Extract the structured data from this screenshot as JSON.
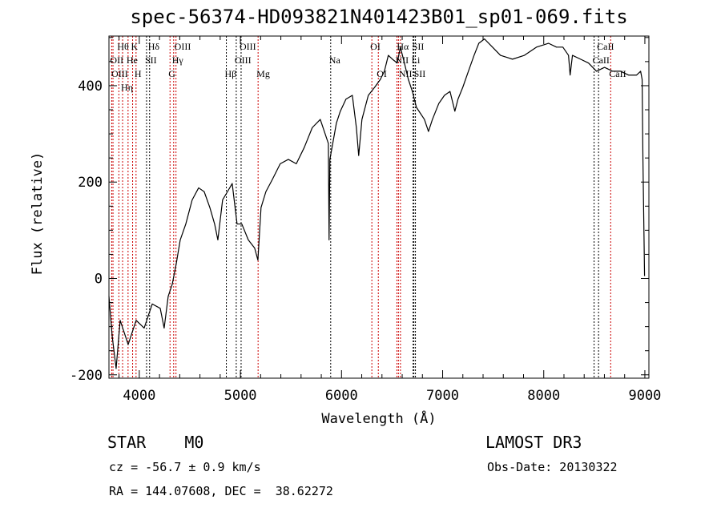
{
  "chart_data": {
    "type": "line",
    "title": "spec-56374-HD093821N401423B01_sp01-069.fits",
    "xlabel": "Wavelength (Å)",
    "ylabel": "Flux (relative)",
    "xlim": [
      3700,
      9040
    ],
    "ylim": [
      -207,
      503
    ],
    "xticks": [
      4000,
      5000,
      6000,
      7000,
      8000,
      9000
    ],
    "yticks": [
      -200,
      0,
      200,
      400
    ],
    "grid": false,
    "series": [
      {
        "name": "spectrum",
        "x": [
          3700,
          3732,
          3771,
          3811,
          3890,
          3969,
          4048,
          4128,
          4207,
          4246,
          4286,
          4326,
          4365,
          4405,
          4460,
          4523,
          4587,
          4642,
          4698,
          4745,
          4777,
          4824,
          4872,
          4919,
          4967,
          5014,
          5078,
          5141,
          5173,
          5204,
          5252,
          5315,
          5394,
          5474,
          5553,
          5632,
          5711,
          5790,
          5830,
          5870,
          5877,
          5885,
          5949,
          5988,
          6044,
          6107,
          6147,
          6170,
          6202,
          6265,
          6329,
          6384,
          6424,
          6463,
          6503,
          6551,
          6582,
          6622,
          6661,
          6701,
          6741,
          6820,
          6860,
          6899,
          6962,
          7018,
          7073,
          7121,
          7152,
          7200,
          7255,
          7311,
          7358,
          7414,
          7493,
          7572,
          7691,
          7809,
          7928,
          8047,
          8126,
          8189,
          8245,
          8261,
          8284,
          8364,
          8443,
          8522,
          8601,
          8681,
          8760,
          8839,
          8918,
          8958,
          8973,
          8981,
          8997
        ],
        "y": [
          -37,
          -120,
          -187,
          -87,
          -137,
          -87,
          -103,
          -53,
          -62,
          -103,
          -37,
          -12,
          30,
          80,
          113,
          163,
          188,
          180,
          147,
          113,
          80,
          163,
          180,
          197,
          113,
          113,
          80,
          63,
          38,
          147,
          180,
          205,
          238,
          247,
          238,
          272,
          313,
          330,
          305,
          280,
          80,
          247,
          322,
          347,
          372,
          380,
          313,
          255,
          330,
          380,
          397,
          413,
          430,
          463,
          455,
          447,
          480,
          447,
          413,
          388,
          355,
          330,
          305,
          330,
          363,
          380,
          388,
          347,
          372,
          397,
          430,
          463,
          488,
          497,
          480,
          463,
          455,
          463,
          480,
          488,
          480,
          480,
          463,
          422,
          463,
          455,
          447,
          430,
          438,
          430,
          430,
          422,
          422,
          430,
          413,
          247,
          5
        ]
      }
    ],
    "lines": [
      {
        "label": "OII",
        "wave": 3727,
        "row": 1,
        "color": "#cc0000"
      },
      {
        "label": "OIII",
        "wave": 3740,
        "row": 2,
        "color": "#cc0000"
      },
      {
        "label": "Hθ",
        "wave": 3798,
        "row": 0,
        "color": "#cc0000"
      },
      {
        "label": "Hη",
        "wave": 3835,
        "row": 2,
        "color": "#cc0000"
      },
      {
        "label": "He",
        "wave": 3889,
        "row": 1,
        "color": "#cc0000"
      },
      {
        "label": "K",
        "wave": 3934,
        "row": 0,
        "color": "#cc0000"
      },
      {
        "label": "H",
        "wave": 3968,
        "row": 2,
        "color": "#cc0000"
      },
      {
        "label": "SII",
        "wave": 4072,
        "row": 1,
        "color": "#000000"
      },
      {
        "label": "Hδ",
        "wave": 4102,
        "row": 0,
        "color": "#000000"
      },
      {
        "label": "G",
        "wave": 4304,
        "row": 2,
        "color": "#cc0000"
      },
      {
        "label": "Hγ",
        "wave": 4340,
        "row": 1,
        "color": "#cc0000"
      },
      {
        "label": "OIII",
        "wave": 4363,
        "row": 0,
        "color": "#cc0000"
      },
      {
        "label": "Hβ",
        "wave": 4861,
        "row": 2,
        "color": "#000000"
      },
      {
        "label": "OIII",
        "wave": 4959,
        "row": 1,
        "color": "#000000"
      },
      {
        "label": "OIII",
        "wave": 5007,
        "row": 0,
        "color": "#000000"
      },
      {
        "label": "Mg",
        "wave": 5175,
        "row": 2,
        "color": "#cc0000"
      },
      {
        "label": "Na",
        "wave": 5893,
        "row": 1,
        "color": "#000000"
      },
      {
        "label": "OI",
        "wave": 6300,
        "row": 0,
        "color": "#cc0000"
      },
      {
        "label": "OI",
        "wave": 6364,
        "row": 2,
        "color": "#cc0000"
      },
      {
        "label": "NII",
        "wave": 6548,
        "row": 1,
        "color": "#cc0000"
      },
      {
        "label": "Hα",
        "wave": 6563,
        "row": 0,
        "color": "#cc0000"
      },
      {
        "label": "NII",
        "wave": 6583,
        "row": 2,
        "color": "#cc0000"
      },
      {
        "label": "Li",
        "wave": 6708,
        "row": 1,
        "color": "#000000"
      },
      {
        "label": "SII",
        "wave": 6716,
        "row": 0,
        "color": "#000000"
      },
      {
        "label": "SII",
        "wave": 6731,
        "row": 2,
        "color": "#000000"
      },
      {
        "label": "CaII",
        "wave": 8498,
        "row": 1,
        "color": "#000000"
      },
      {
        "label": "CaII",
        "wave": 8542,
        "row": 0,
        "color": "#000000"
      },
      {
        "label": "CaII",
        "wave": 8662,
        "row": 2,
        "color": "#cc0000"
      }
    ]
  },
  "info": {
    "object_type": "STAR    M0",
    "survey": "LAMOST DR3",
    "redshift": "cz = -56.7 ± 0.9 km/s",
    "obs_date": "Obs-Date: 20130322",
    "coords": "RA = 144.07608, DEC =  38.62272"
  }
}
